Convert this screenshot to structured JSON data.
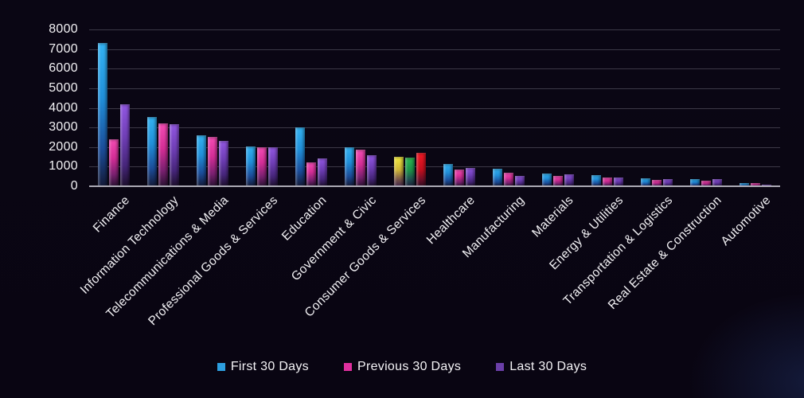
{
  "chart_data": {
    "type": "bar",
    "title": "",
    "categories": [
      "Finance",
      "Information Technology",
      "Telecommunications & Media",
      "Professional Goods & Services",
      "Education",
      "Government & Civic",
      "Consumer Goods & Services",
      "Healthcare",
      "Manufacturing",
      "Materials",
      "Energy & Utilities",
      "Transportation & Logistics",
      "Real Estate & Construction",
      "Automotive"
    ],
    "series": [
      {
        "name": "First 30 Days",
        "color": "#2d9fe0",
        "values": [
          7300,
          3550,
          2600,
          2050,
          3000,
          2000,
          1520,
          1120,
          880,
          650,
          550,
          410,
          360,
          170
        ]
      },
      {
        "name": "Previous 30 Days",
        "color": "#df2f9e",
        "values": [
          2400,
          3200,
          2500,
          2000,
          1200,
          1870,
          1470,
          850,
          680,
          520,
          450,
          340,
          300,
          150
        ]
      },
      {
        "name": "Last 30 Days",
        "color": "#6b3fa8",
        "values": [
          4200,
          3150,
          2300,
          2000,
          1430,
          1600,
          1700,
          930,
          510,
          590,
          450,
          360,
          370,
          70
        ]
      }
    ],
    "highlight": {
      "category": "Consumer Goods & Services",
      "colors": [
        "#f2e83a",
        "#23a94c",
        "#e6101e"
      ]
    },
    "y_ticks": [
      0,
      1000,
      2000,
      3000,
      4000,
      5000,
      6000,
      7000,
      8000
    ],
    "ylim": [
      0,
      8000
    ],
    "grid": true,
    "legend_position": "bottom",
    "background": "#090512"
  }
}
